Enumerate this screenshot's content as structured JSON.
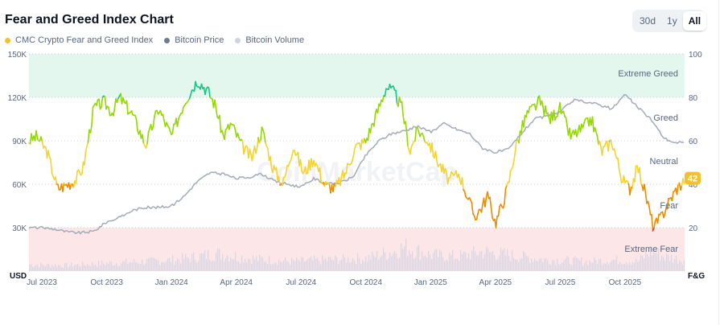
{
  "header": {
    "title": "Fear and Greed Index Chart"
  },
  "range": {
    "options": [
      "30d",
      "1y",
      "All"
    ],
    "active": "All"
  },
  "legend": [
    {
      "label": "CMC Crypto Fear and Greed Index",
      "color": "#f2c12e"
    },
    {
      "label": "Bitcoin Price",
      "color": "#6f7a8b"
    },
    {
      "label": "Bitcoin Volume",
      "color": "#cfd3da"
    }
  ],
  "chart_data": {
    "type": "line",
    "title": "Fear and Greed Index Chart",
    "left_axis": {
      "label": "USD",
      "ticks": [
        "30K",
        "60K",
        "90K",
        "120K",
        "150K"
      ],
      "min": 0,
      "max": 150000
    },
    "right_axis": {
      "label": "F&G",
      "ticks": [
        "20",
        "40",
        "60",
        "80",
        "100"
      ],
      "min": 0,
      "max": 100
    },
    "x_ticks": [
      "Jul 2023",
      "Oct 2023",
      "Jan 2024",
      "Apr 2024",
      "Jul 2024",
      "Oct 2024",
      "Jan 2025",
      "Apr 2025",
      "Jul 2025",
      "Oct 2025"
    ],
    "x_range": [
      2023.45,
      2025.98
    ],
    "zones": [
      {
        "label": "Extreme Greed",
        "from": 80,
        "to": 100,
        "color": "#e3f7ee"
      },
      {
        "label": "Greed",
        "from": 60,
        "to": 80
      },
      {
        "label": "Neutral",
        "from": 40,
        "to": 60
      },
      {
        "label": "Fear",
        "from": 20,
        "to": 40
      },
      {
        "label": "Extreme Fear",
        "from": 0,
        "to": 20,
        "color": "#fde6e7"
      }
    ],
    "current_value": "42",
    "watermark": "CoinMarketCap",
    "series": [
      {
        "name": "CMC Crypto Fear and Greed Index",
        "axis": "right",
        "x": [
          2023.45,
          2023.48,
          2023.52,
          2023.56,
          2023.6,
          2023.63,
          2023.66,
          2023.7,
          2023.74,
          2023.77,
          2023.8,
          2023.85,
          2023.9,
          2023.95,
          2024.0,
          2024.05,
          2024.1,
          2024.14,
          2024.17,
          2024.2,
          2024.23,
          2024.27,
          2024.31,
          2024.35,
          2024.39,
          2024.43,
          2024.47,
          2024.51,
          2024.55,
          2024.59,
          2024.63,
          2024.67,
          2024.71,
          2024.75,
          2024.79,
          2024.83,
          2024.86,
          2024.89,
          2024.92,
          2024.95,
          2024.99,
          2025.03,
          2025.07,
          2025.11,
          2025.14,
          2025.17,
          2025.2,
          2025.22,
          2025.25,
          2025.28,
          2025.3,
          2025.33,
          2025.37,
          2025.42,
          2025.46,
          2025.5,
          2025.54,
          2025.58,
          2025.62,
          2025.66,
          2025.7,
          2025.74,
          2025.77,
          2025.8,
          2025.83,
          2025.86,
          2025.89,
          2025.92,
          2025.95,
          2025.98
        ],
        "values": [
          60,
          62,
          55,
          38,
          40,
          42,
          48,
          75,
          78,
          73,
          80,
          72,
          58,
          75,
          62,
          78,
          88,
          83,
          76,
          62,
          68,
          58,
          52,
          65,
          48,
          40,
          58,
          45,
          52,
          40,
          38,
          45,
          57,
          60,
          72,
          85,
          82,
          75,
          55,
          65,
          60,
          50,
          42,
          45,
          35,
          25,
          30,
          35,
          22,
          32,
          40,
          58,
          72,
          78,
          70,
          75,
          62,
          65,
          70,
          55,
          60,
          42,
          38,
          48,
          35,
          20,
          25,
          32,
          38,
          42
        ]
      },
      {
        "name": "Bitcoin Price",
        "axis": "left",
        "x": [
          2023.45,
          2023.5,
          2023.55,
          2023.6,
          2023.65,
          2023.7,
          2023.75,
          2023.8,
          2023.85,
          2023.9,
          2023.95,
          2024.0,
          2024.05,
          2024.1,
          2024.15,
          2024.2,
          2024.25,
          2024.3,
          2024.35,
          2024.4,
          2024.45,
          2024.5,
          2024.55,
          2024.6,
          2024.65,
          2024.7,
          2024.75,
          2024.8,
          2024.85,
          2024.9,
          2024.95,
          2025.0,
          2025.05,
          2025.1,
          2025.15,
          2025.2,
          2025.25,
          2025.3,
          2025.35,
          2025.4,
          2025.45,
          2025.5,
          2025.55,
          2025.6,
          2025.65,
          2025.7,
          2025.75,
          2025.8,
          2025.85,
          2025.9,
          2025.95,
          2025.98
        ],
        "values": [
          30000,
          30000,
          29000,
          27000,
          26500,
          27500,
          34000,
          37000,
          42000,
          44000,
          44000,
          45000,
          52000,
          62000,
          68000,
          67000,
          64000,
          65000,
          67000,
          62000,
          60000,
          58000,
          64000,
          60000,
          61000,
          65000,
          80000,
          90000,
          95000,
          97000,
          100000,
          96000,
          102000,
          98000,
          95000,
          85000,
          82000,
          84000,
          95000,
          105000,
          107000,
          110000,
          118000,
          117000,
          115000,
          112000,
          122000,
          113000,
          105000,
          92000,
          88000,
          90000
        ]
      },
      {
        "name": "Bitcoin Volume",
        "type": "area",
        "unit": "relative 0-1",
        "x": [
          2023.45,
          2023.6,
          2023.75,
          2023.9,
          2024.0,
          2024.1,
          2024.17,
          2024.3,
          2024.45,
          2024.6,
          2024.75,
          2024.85,
          2024.9,
          2025.0,
          2025.1,
          2025.2,
          2025.3,
          2025.45,
          2025.6,
          2025.7,
          2025.8,
          2025.85,
          2025.9,
          2025.98
        ],
        "values": [
          0.2,
          0.18,
          0.25,
          0.3,
          0.35,
          0.45,
          0.55,
          0.4,
          0.3,
          0.35,
          0.4,
          0.6,
          0.75,
          0.5,
          0.45,
          0.6,
          0.5,
          0.35,
          0.3,
          0.35,
          0.3,
          0.65,
          0.45,
          0.35
        ]
      }
    ]
  }
}
